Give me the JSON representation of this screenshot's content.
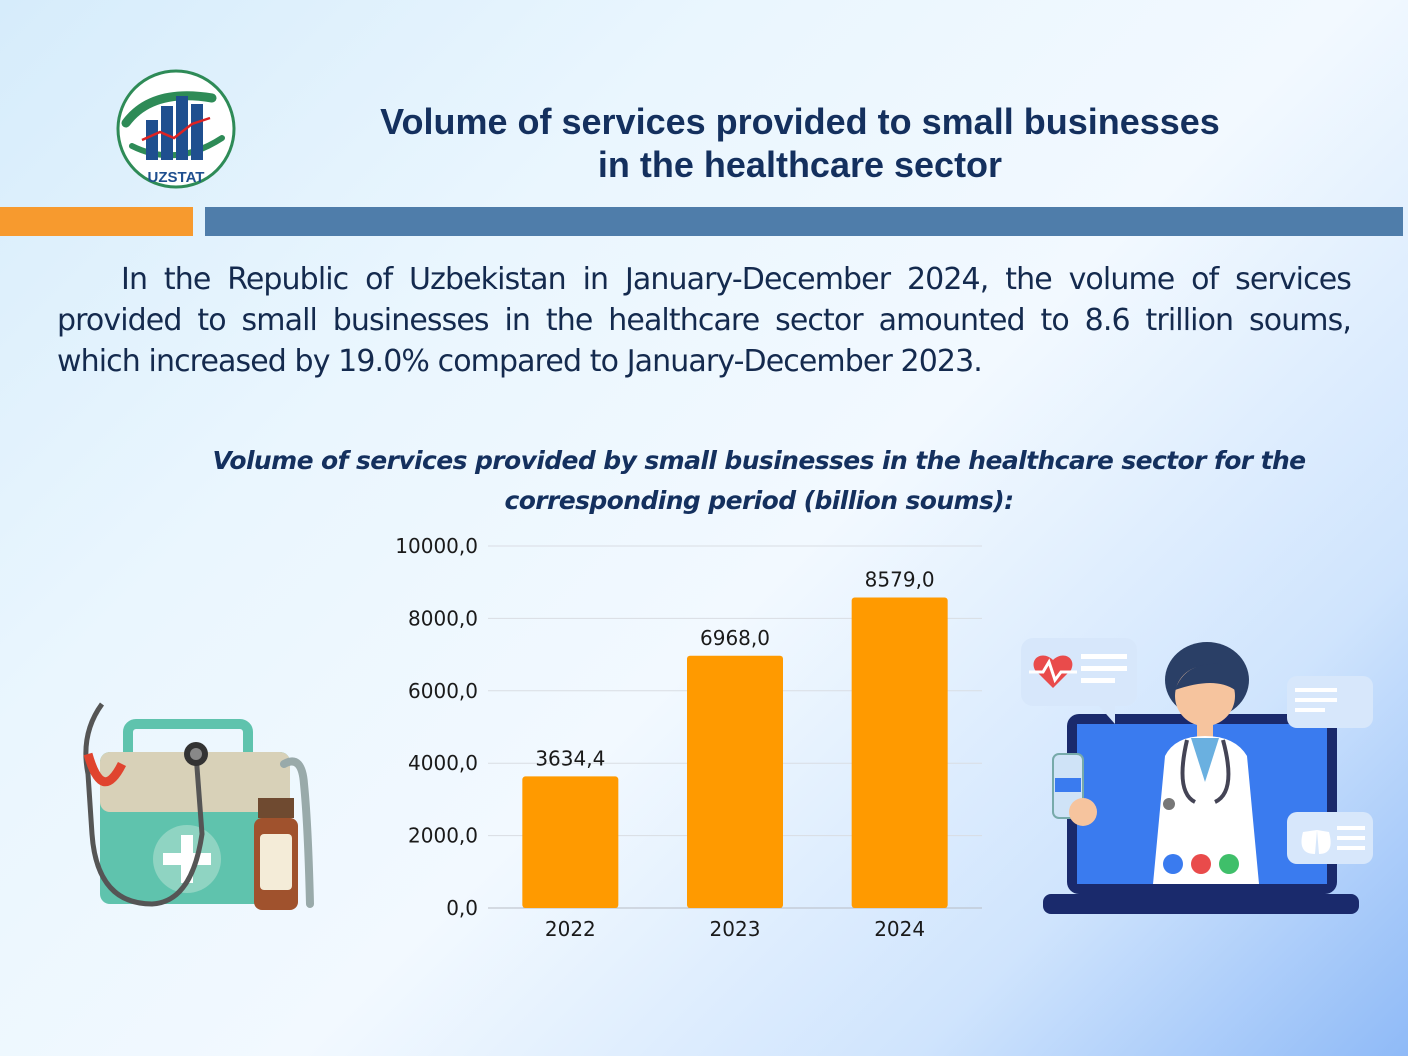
{
  "logo": {
    "text": "UZSTAT"
  },
  "header": {
    "title_line1": "Volume of services provided to small businesses",
    "title_line2": "in the healthcare sector"
  },
  "intro_text": "In the Republic of Uzbekistan in January-December 2024, the volume of services provided to small businesses in the healthcare sector amounted to 8.6 trillion soums, which increased by 19.0% compared to January-December 2023.",
  "chart_title": "Volume of services provided by small businesses in the healthcare sector for the corresponding period (billion soums):",
  "colors": {
    "bar": "#ff9a00",
    "accent_orange": "#f79a2e",
    "accent_blue": "#4f7daa",
    "title": "#14305e"
  },
  "chart_data": {
    "type": "bar",
    "categories": [
      "2022",
      "2023",
      "2024"
    ],
    "values": [
      3634.4,
      6968.0,
      8579.0
    ],
    "value_labels": [
      "3634,4",
      "6968,0",
      "8579,0"
    ],
    "ylim": [
      0,
      10000
    ],
    "yticks": [
      0,
      2000,
      4000,
      6000,
      8000,
      10000
    ],
    "ytick_labels": [
      "0,0",
      "2000,0",
      "4000,0",
      "6000,0",
      "8000,0",
      "10000,0"
    ],
    "title": "Volume of services provided by small businesses in the healthcare sector for the corresponding period (billion soums):",
    "xlabel": "",
    "ylabel": "",
    "grid": true,
    "legend": "none"
  },
  "icons": [
    "medical-kit-icon",
    "stethoscope-icon",
    "medicine-bottle-icon",
    "doctor-telemedicine-icon",
    "heart-rate-icon",
    "lungs-icon",
    "video-call-icon",
    "phone-icon",
    "microphone-icon"
  ]
}
